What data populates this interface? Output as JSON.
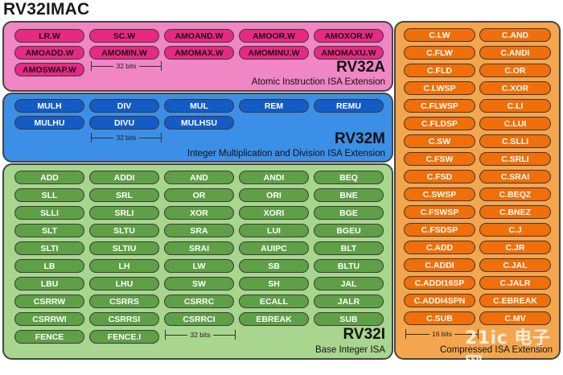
{
  "title": "RV32IMAC",
  "rv32a": {
    "name": "RV32A",
    "subtitle": "Atomic Instruction ISA Extension",
    "width_label": "32 bits",
    "instructions": [
      "LR.W",
      "SC.W",
      "AMOAND.W",
      "AMOOR.W",
      "AMOXOR.W",
      "AMOADD.W",
      "AMOMIN.W",
      "AMOMAX.W",
      "AMOMINU.W",
      "AMOMAXU.W",
      "AMOSWAP.W"
    ]
  },
  "rv32m": {
    "name": "RV32M",
    "subtitle": "Integer Multiplication and Division ISA Extension",
    "width_label": "32 bits",
    "instructions": [
      "MULH",
      "DIV",
      "MUL",
      "REM",
      "REMU",
      "MULHU",
      "DIVU",
      "MULHSU"
    ]
  },
  "rv32i": {
    "name": "RV32I",
    "subtitle": "Base Integer ISA",
    "width_label": "32 bits",
    "instructions": [
      "ADD",
      "ADDI",
      "AND",
      "ANDI",
      "BEQ",
      "SLL",
      "SRL",
      "OR",
      "ORI",
      "BNE",
      "SLLI",
      "SRLI",
      "XOR",
      "XORI",
      "BGE",
      "SLT",
      "SLTU",
      "SRA",
      "LUI",
      "BGEU",
      "SLTI",
      "SLTIU",
      "SRAI",
      "AUIPC",
      "BLT",
      "LB",
      "LH",
      "LW",
      "SB",
      "BLTU",
      "LBU",
      "LHU",
      "SW",
      "SH",
      "JAL",
      "CSRRW",
      "CSRRS",
      "CSRRC",
      "ECALL",
      "JALR",
      "CSRRWI",
      "CSRRSI",
      "CSRRCI",
      "EBREAK",
      "SUB",
      "FENCE",
      "FENCE.I"
    ]
  },
  "rv32c": {
    "subtitle": "Compressed ISA Extension",
    "width_label": "16 bits",
    "instructions": [
      "C.LW",
      "C.AND",
      "C.FLW",
      "C.ANDI",
      "C.FLD",
      "C.OR",
      "C.LWSP",
      "C.XOR",
      "C.FLWSP",
      "C.LI",
      "C.FLDSP",
      "C.LUI",
      "C.SW",
      "C.SLLI",
      "C.FSW",
      "C.SRLI",
      "C.FSD",
      "C.SRAI",
      "C.SWSP",
      "C.BEQZ",
      "C.FSWSP",
      "C.BNEZ",
      "C.FSDSP",
      "C.J",
      "C.ADD",
      "C.JR",
      "C.ADDI",
      "C.JAL",
      "C.ADDI16SP",
      "C.JALR",
      "C.ADDI4SPN",
      "C.EBREAK",
      "C.SUB",
      "C.MV"
    ]
  },
  "watermark": "21ic 电子网",
  "colors": {
    "a_panel": "#f086c4",
    "a_pill": "#e62a83",
    "m_panel": "#3c8fe6",
    "m_pill": "#155bc6",
    "i_panel": "#a8d68e",
    "i_pill": "#5fa047",
    "c_panel": "#f4a64e",
    "c_pill": "#f06f0a"
  }
}
